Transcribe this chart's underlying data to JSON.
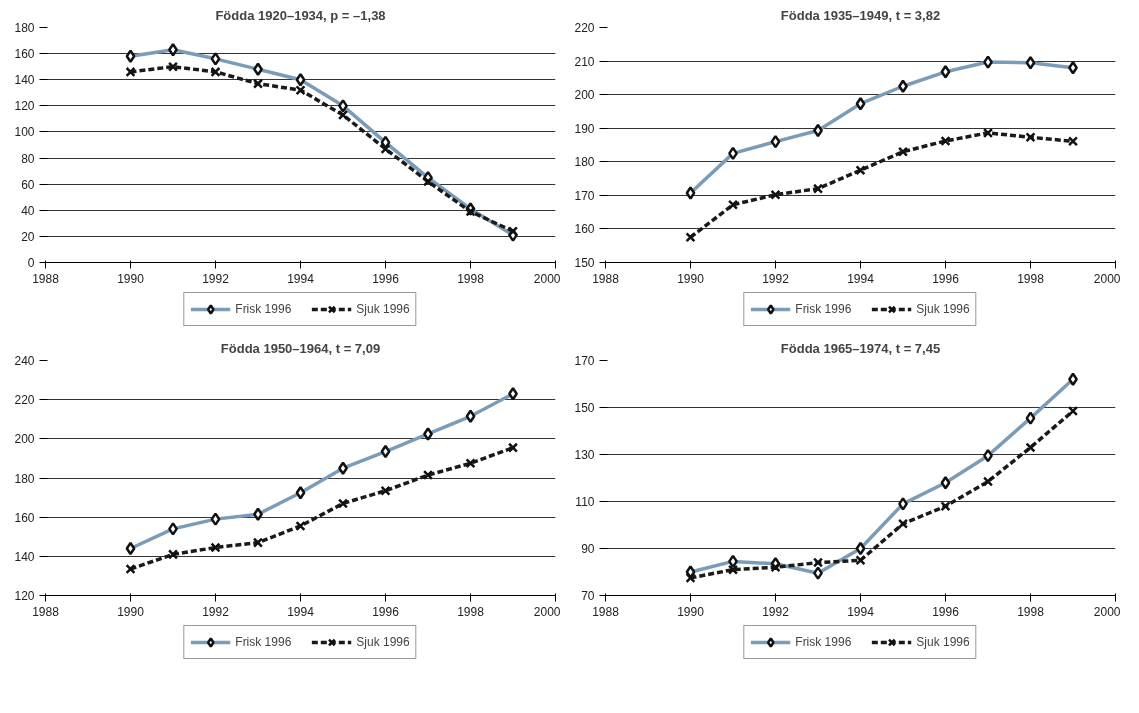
{
  "chart_data": [
    {
      "type": "line",
      "title": "Födda 1920–1934, p = –1,38",
      "x": [
        1990,
        1991,
        1992,
        1993,
        1994,
        1995,
        1996,
        1997,
        1998,
        1999
      ],
      "xlim": [
        1988,
        2000
      ],
      "xticks": [
        1988,
        1990,
        1992,
        1994,
        1996,
        1998,
        2000
      ],
      "ylim": [
        0,
        180
      ],
      "yticks": [
        0,
        20,
        40,
        60,
        80,
        100,
        120,
        140,
        160,
        180
      ],
      "grid": "y",
      "legend": "bottom",
      "series": [
        {
          "name": "Frisk 1996",
          "color": "#7a9cb8",
          "marker": "diamond",
          "line_style": "solid",
          "values": [
            158,
            163,
            156,
            148,
            140,
            120,
            92,
            65,
            41,
            21
          ]
        },
        {
          "name": "Sjuk 1996",
          "color": "#1a1a1a",
          "marker": "cross",
          "line_style": "dashed",
          "values": [
            146,
            150,
            146,
            137,
            132,
            113,
            87,
            62,
            39,
            24
          ]
        }
      ]
    },
    {
      "type": "line",
      "title": "Födda 1935–1949, t = 3,82",
      "x": [
        1990,
        1991,
        1992,
        1993,
        1994,
        1995,
        1996,
        1997,
        1998,
        1999
      ],
      "xlim": [
        1988,
        2000
      ],
      "xticks": [
        1988,
        1990,
        1992,
        1994,
        1996,
        1998,
        2000
      ],
      "ylim": [
        150,
        220
      ],
      "yticks": [
        150,
        160,
        170,
        180,
        190,
        200,
        210,
        220
      ],
      "grid": "y",
      "legend": "bottom",
      "series": [
        {
          "name": "Frisk 1996",
          "color": "#7a9cb8",
          "marker": "diamond",
          "line_style": "solid",
          "values": [
            170.7,
            182.5,
            186,
            189.3,
            197.3,
            202.5,
            206.8,
            209.7,
            209.5,
            208
          ]
        },
        {
          "name": "Sjuk 1996",
          "color": "#1a1a1a",
          "marker": "cross",
          "line_style": "dashed",
          "values": [
            157.5,
            167.2,
            170.2,
            172,
            177.5,
            183,
            186.2,
            188.6,
            187.3,
            186.1
          ]
        }
      ]
    },
    {
      "type": "line",
      "title": "Födda 1950–1964, t = 7,09",
      "x": [
        1990,
        1991,
        1992,
        1993,
        1994,
        1995,
        1996,
        1997,
        1998,
        1999
      ],
      "xlim": [
        1988,
        2000
      ],
      "xticks": [
        1988,
        1990,
        1992,
        1994,
        1996,
        1998,
        2000
      ],
      "ylim": [
        120,
        240
      ],
      "yticks": [
        120,
        140,
        160,
        180,
        200,
        220,
        240
      ],
      "grid": "y",
      "legend": "bottom",
      "series": [
        {
          "name": "Frisk 1996",
          "color": "#7a9cb8",
          "marker": "diamond",
          "line_style": "solid",
          "values": [
            144,
            154,
            159,
            161.5,
            172.5,
            185,
            193.5,
            202.5,
            211.5,
            223
          ]
        },
        {
          "name": "Sjuk 1996",
          "color": "#1a1a1a",
          "marker": "cross",
          "line_style": "dashed",
          "values": [
            133.5,
            141,
            144.5,
            147,
            155.5,
            167,
            173.5,
            181.5,
            187.5,
            195.5
          ]
        }
      ]
    },
    {
      "type": "line",
      "title": "Födda 1965–1974, t = 7,45",
      "x": [
        1990,
        1991,
        1992,
        1993,
        1994,
        1995,
        1996,
        1997,
        1998,
        1999
      ],
      "xlim": [
        1988,
        2000
      ],
      "xticks": [
        1988,
        1990,
        1992,
        1994,
        1996,
        1998,
        2000
      ],
      "ylim": [
        70,
        170
      ],
      "yticks": [
        70,
        90,
        110,
        130,
        150,
        170
      ],
      "grid": "y",
      "legend": "bottom",
      "series": [
        {
          "name": "Frisk 1996",
          "color": "#7a9cb8",
          "marker": "diamond",
          "line_style": "solid",
          "values": [
            80,
            84.5,
            83.5,
            79.5,
            90,
            109,
            118,
            129.5,
            145.5,
            162
          ]
        },
        {
          "name": "Sjuk 1996",
          "color": "#1a1a1a",
          "marker": "cross",
          "line_style": "dashed",
          "values": [
            77.5,
            81,
            82,
            84,
            85,
            100.5,
            108,
            118.5,
            133,
            148.5
          ]
        }
      ]
    }
  ]
}
